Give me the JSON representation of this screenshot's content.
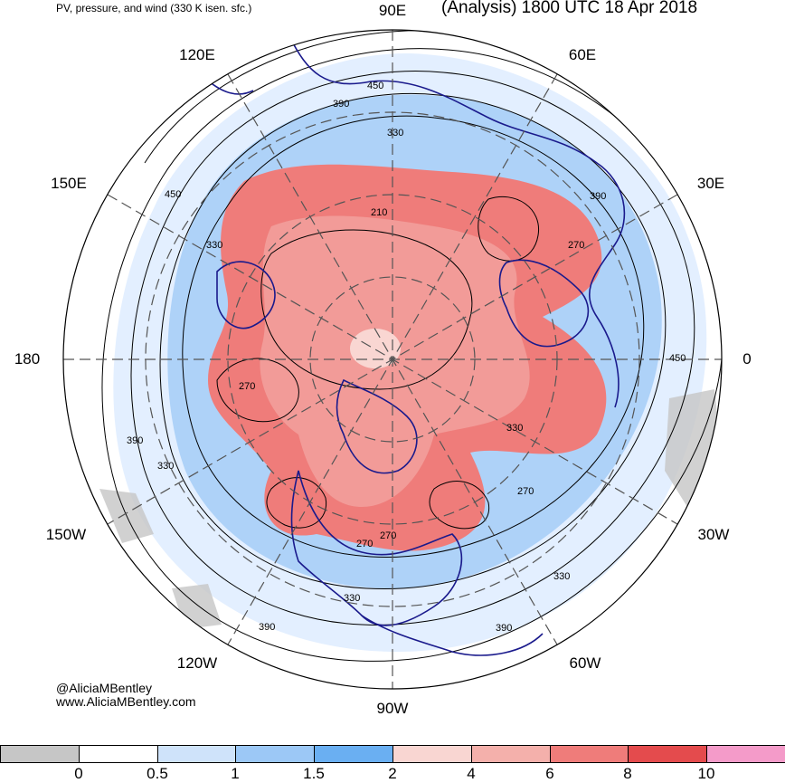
{
  "header": {
    "left_title": "PV, pressure, and wind (330 K isen. sfc.)",
    "right_title": "(Analysis) 1800 UTC 18 Apr 2018"
  },
  "longitude_labels": [
    "90E",
    "60E",
    "30E",
    "0",
    "30W",
    "60W",
    "90W",
    "120W",
    "150W",
    "180",
    "150E",
    "120E"
  ],
  "contour_labels": [
    "450",
    "390",
    "330",
    "210",
    "270",
    "390",
    "270",
    "450",
    "330",
    "270",
    "330",
    "390",
    "330",
    "270",
    "270",
    "330",
    "390",
    "390",
    "450",
    "330"
  ],
  "credits": {
    "handle": "@AliciaMBentley",
    "website": "www.AliciaMBentley.com"
  },
  "colorbar": {
    "colors": [
      "#c6c6c6",
      "#ffffff",
      "#cfe3fa",
      "#9cc8f6",
      "#6aaff2",
      "#f9d6d2",
      "#f4b0ab",
      "#ef7c7a",
      "#e44b4d",
      "#f49bc9"
    ],
    "tick_labels": [
      "0",
      "0.5",
      "1",
      "1.5",
      "2",
      "4",
      "6",
      "8",
      "10"
    ]
  },
  "colors": {
    "coastline": "#1a1a8c",
    "contour": "#000000",
    "grid": "#555555"
  }
}
